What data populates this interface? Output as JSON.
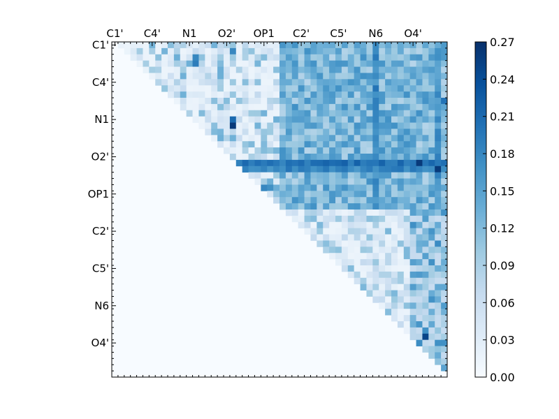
{
  "chart_data": {
    "type": "heatmap",
    "title": "",
    "xlabel": "",
    "ylabel": "",
    "n": 54,
    "x_tick_labels": [
      "C1'",
      "C4'",
      "N1",
      "O2'",
      "OP1",
      "C2'",
      "C5'",
      "N6",
      "O4'"
    ],
    "y_tick_labels": [
      "C1'",
      "C4'",
      "N1",
      "O2'",
      "OP1",
      "C2'",
      "C5'",
      "N6",
      "O4'"
    ],
    "tick_positions": [
      0.5,
      6.5,
      12.5,
      18.5,
      24.5,
      30.5,
      36.5,
      42.5,
      48.5
    ],
    "colorbar": {
      "min": 0.0,
      "max": 0.27,
      "ticks": [
        "0.00",
        "0.03",
        "0.06",
        "0.09",
        "0.12",
        "0.15",
        "0.18",
        "0.21",
        "0.24",
        "0.27"
      ],
      "colormap_stops": [
        "#f7fbff",
        "#deebf7",
        "#c6dbef",
        "#9ecae1",
        "#6baed6",
        "#4292c6",
        "#2171b5",
        "#08519c",
        "#08306b"
      ]
    },
    "values_note": "upper-triangular matrix; lower triangle and diagonal are 0",
    "strong_rows": [
      {
        "row": 19,
        "value": 0.2
      },
      {
        "row": 20,
        "value": 0.18
      }
    ],
    "strong_columns": [
      {
        "col": 42,
        "value": 0.18
      },
      {
        "col": 52,
        "value": 0.17
      }
    ],
    "highlights": [
      {
        "row": 13,
        "col": 19,
        "value": 0.26
      },
      {
        "row": 12,
        "col": 19,
        "value": 0.21
      },
      {
        "row": 19,
        "col": 49,
        "value": 0.26
      },
      {
        "row": 20,
        "col": 52,
        "value": 0.26
      },
      {
        "row": 1,
        "col": 19,
        "value": 0.18
      },
      {
        "row": 2,
        "col": 13,
        "value": 0.18
      },
      {
        "row": 3,
        "col": 13,
        "value": 0.19
      },
      {
        "row": 23,
        "col": 24,
        "value": 0.18
      },
      {
        "row": 23,
        "col": 25,
        "value": 0.17
      },
      {
        "row": 47,
        "col": 50,
        "value": 0.25
      },
      {
        "row": 48,
        "col": 52,
        "value": 0.17
      },
      {
        "row": 48,
        "col": 53,
        "value": 0.17
      },
      {
        "row": 9,
        "col": 53,
        "value": 0.2
      }
    ]
  }
}
